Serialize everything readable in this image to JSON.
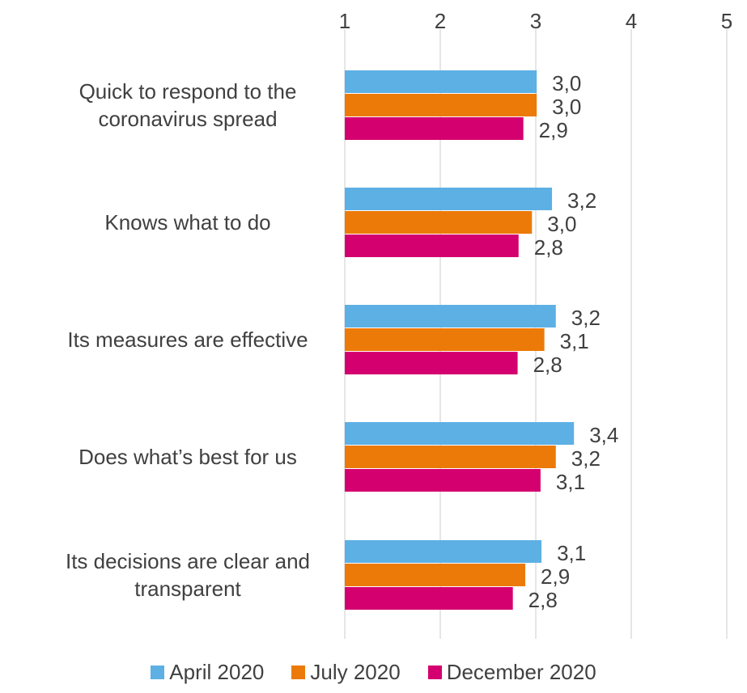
{
  "chart_data": {
    "type": "bar",
    "orientation": "horizontal",
    "categories": [
      [
        "Quick to respond to the",
        "coronavirus spread"
      ],
      [
        "Knows what to do"
      ],
      [
        "Its measures are effective"
      ],
      [
        "Does what’s best for us"
      ],
      [
        "Its decisions are clear and",
        "transparent"
      ]
    ],
    "series": [
      {
        "name": "April 2020",
        "color": "#5DB0E4",
        "values": [
          3.01,
          3.17,
          3.21,
          3.4,
          3.06
        ],
        "labels": [
          "3,0",
          "3,2",
          "3,2",
          "3,4",
          "3,1"
        ]
      },
      {
        "name": "July 2020",
        "color": "#EC7A08",
        "values": [
          3.01,
          2.96,
          3.09,
          3.21,
          2.89
        ],
        "labels": [
          "3,0",
          "3,0",
          "3,1",
          "3,2",
          "2,9"
        ]
      },
      {
        "name": "December 2020",
        "color": "#D4006F",
        "values": [
          2.87,
          2.82,
          2.81,
          3.05,
          2.76
        ],
        "labels": [
          "2,9",
          "2,8",
          "2,8",
          "3,1",
          "2,8"
        ]
      }
    ],
    "xlim": [
      1,
      5
    ],
    "ticks": [
      "1",
      "2",
      "3",
      "4",
      "5"
    ],
    "axis_position": "top",
    "grid": true,
    "legend": "bottom"
  }
}
